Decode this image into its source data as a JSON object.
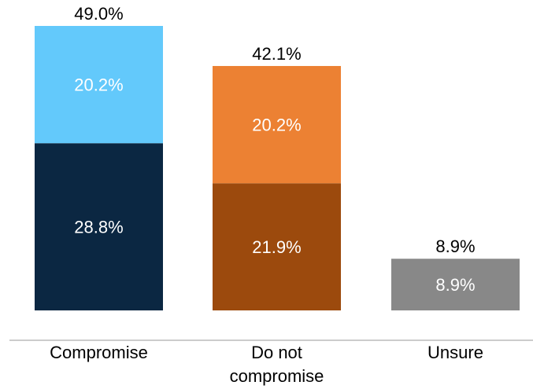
{
  "chart_data": {
    "type": "bar",
    "stacked": true,
    "categories": [
      "Compromise",
      "Do not compromise",
      "Unsure"
    ],
    "category_labels": [
      [
        "Compromise"
      ],
      [
        "Do not",
        "compromise"
      ],
      [
        "Unsure"
      ]
    ],
    "totals": [
      49.0,
      42.1,
      8.9
    ],
    "total_labels": [
      "49.0%",
      "42.1%",
      "8.9%"
    ],
    "bars": [
      {
        "category": "Compromise",
        "segments": [
          {
            "value": 28.8,
            "label": "28.8%",
            "color": "#0b2742"
          },
          {
            "value": 20.2,
            "label": "20.2%",
            "color": "#63c9fb"
          }
        ]
      },
      {
        "category": "Do not compromise",
        "segments": [
          {
            "value": 21.9,
            "label": "21.9%",
            "color": "#9c4a0d"
          },
          {
            "value": 20.2,
            "label": "20.2%",
            "color": "#ec8133"
          }
        ]
      },
      {
        "category": "Unsure",
        "segments": [
          {
            "value": 8.9,
            "label": "8.9%",
            "color": "#888888"
          }
        ]
      }
    ],
    "ylim": [
      0,
      49.0
    ],
    "grid": false,
    "axis_line_color": "#cccccc"
  }
}
